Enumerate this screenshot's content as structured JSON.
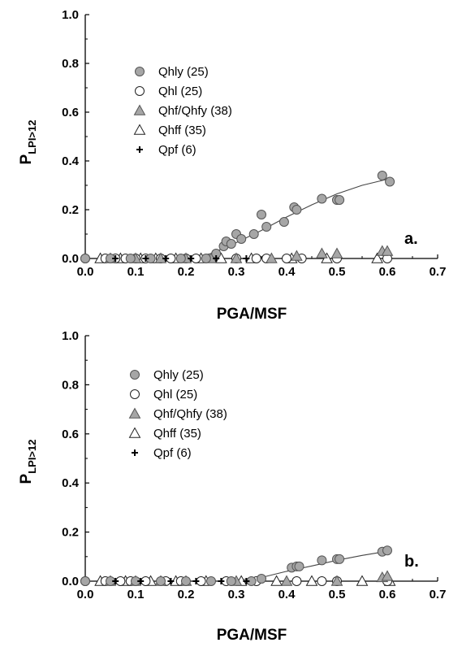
{
  "chart_data": [
    {
      "type": "scatter",
      "panel_label": "a.",
      "xlabel": "PGA/MSF",
      "ylabel": "P",
      "ylabel_sub": "LPI>12",
      "xlim": [
        0,
        0.7
      ],
      "ylim": [
        0,
        1
      ],
      "xticks": [
        "0.0",
        "0.1",
        "0.2",
        "0.3",
        "0.4",
        "0.5",
        "0.6",
        "0.7"
      ],
      "yticks": [
        "0.0",
        "0.2",
        "0.4",
        "0.6",
        "0.8",
        "1.0"
      ],
      "grid": false,
      "legend_position": "top-left",
      "series": [
        {
          "name": "Qhly (25)",
          "marker": "circle-filled",
          "color": "#a6a6a6",
          "points": [
            [
              0.0,
              0.0
            ],
            [
              0.05,
              0.0
            ],
            [
              0.09,
              0.0
            ],
            [
              0.13,
              0.0
            ],
            [
              0.19,
              0.0
            ],
            [
              0.24,
              0.0
            ],
            [
              0.26,
              0.02
            ],
            [
              0.275,
              0.05
            ],
            [
              0.28,
              0.07
            ],
            [
              0.29,
              0.06
            ],
            [
              0.3,
              0.1
            ],
            [
              0.31,
              0.08
            ],
            [
              0.335,
              0.1
            ],
            [
              0.35,
              0.18
            ],
            [
              0.36,
              0.13
            ],
            [
              0.395,
              0.15
            ],
            [
              0.415,
              0.21
            ],
            [
              0.42,
              0.2
            ],
            [
              0.47,
              0.245
            ],
            [
              0.5,
              0.24
            ],
            [
              0.505,
              0.24
            ],
            [
              0.59,
              0.34
            ],
            [
              0.605,
              0.315
            ]
          ]
        },
        {
          "name": "Qhl (25)",
          "marker": "circle-open",
          "color": "#ffffff",
          "points": [
            [
              0.0,
              0.0
            ],
            [
              0.04,
              0.0
            ],
            [
              0.06,
              0.0
            ],
            [
              0.08,
              0.0
            ],
            [
              0.1,
              0.0
            ],
            [
              0.12,
              0.0
            ],
            [
              0.15,
              0.0
            ],
            [
              0.17,
              0.0
            ],
            [
              0.2,
              0.0
            ],
            [
              0.22,
              0.0
            ],
            [
              0.3,
              0.0
            ],
            [
              0.34,
              0.0
            ],
            [
              0.36,
              0.0
            ],
            [
              0.4,
              0.0
            ],
            [
              0.43,
              0.0
            ],
            [
              0.5,
              0.0
            ],
            [
              0.6,
              0.0
            ]
          ]
        },
        {
          "name": "Qhf/Qhfy (38)",
          "marker": "triangle-filled",
          "color": "#a6a6a6",
          "points": [
            [
              0.05,
              0.0
            ],
            [
              0.1,
              0.0
            ],
            [
              0.15,
              0.0
            ],
            [
              0.2,
              0.0
            ],
            [
              0.25,
              0.0
            ],
            [
              0.3,
              0.0
            ],
            [
              0.37,
              0.0
            ],
            [
              0.42,
              0.01
            ],
            [
              0.47,
              0.02
            ],
            [
              0.5,
              0.02
            ],
            [
              0.59,
              0.03
            ],
            [
              0.6,
              0.03
            ]
          ]
        },
        {
          "name": "Qhff (35)",
          "marker": "triangle-open",
          "color": "#ffffff",
          "points": [
            [
              0.03,
              0.0
            ],
            [
              0.07,
              0.0
            ],
            [
              0.11,
              0.0
            ],
            [
              0.14,
              0.0
            ],
            [
              0.18,
              0.0
            ],
            [
              0.23,
              0.0
            ],
            [
              0.27,
              0.0
            ],
            [
              0.33,
              0.0
            ],
            [
              0.41,
              0.0
            ],
            [
              0.48,
              0.0
            ],
            [
              0.58,
              0.0
            ]
          ]
        },
        {
          "name": "Qpf (6)",
          "marker": "plus",
          "color": "#000000",
          "points": [
            [
              0.06,
              0.0
            ],
            [
              0.12,
              0.0
            ],
            [
              0.16,
              0.0
            ],
            [
              0.21,
              0.0
            ],
            [
              0.26,
              0.0
            ],
            [
              0.32,
              0.0
            ]
          ]
        }
      ],
      "fit_curve": {
        "points": [
          [
            0.2,
            0.0
          ],
          [
            0.25,
            0.02
          ],
          [
            0.3,
            0.065
          ],
          [
            0.35,
            0.115
          ],
          [
            0.4,
            0.17
          ],
          [
            0.45,
            0.22
          ],
          [
            0.5,
            0.265
          ],
          [
            0.55,
            0.3
          ],
          [
            0.6,
            0.325
          ]
        ]
      }
    },
    {
      "type": "scatter",
      "panel_label": "b.",
      "xlabel": "PGA/MSF",
      "ylabel": "P",
      "ylabel_sub": "LPI>12",
      "xlim": [
        0,
        0.7
      ],
      "ylim": [
        0,
        1
      ],
      "xticks": [
        "0.0",
        "0.1",
        "0.2",
        "0.3",
        "0.4",
        "0.5",
        "0.6",
        "0.7"
      ],
      "yticks": [
        "0.0",
        "0.2",
        "0.4",
        "0.6",
        "0.8",
        "1.0"
      ],
      "grid": false,
      "legend_position": "top-left",
      "series": [
        {
          "name": "Qhly (25)",
          "marker": "circle-filled",
          "color": "#a6a6a6",
          "points": [
            [
              0.0,
              0.0
            ],
            [
              0.05,
              0.0
            ],
            [
              0.1,
              0.0
            ],
            [
              0.15,
              0.0
            ],
            [
              0.2,
              0.0
            ],
            [
              0.25,
              0.0
            ],
            [
              0.29,
              0.0
            ],
            [
              0.33,
              0.0
            ],
            [
              0.35,
              0.01
            ],
            [
              0.41,
              0.055
            ],
            [
              0.42,
              0.06
            ],
            [
              0.425,
              0.06
            ],
            [
              0.47,
              0.085
            ],
            [
              0.5,
              0.09
            ],
            [
              0.505,
              0.09
            ],
            [
              0.59,
              0.12
            ],
            [
              0.6,
              0.125
            ]
          ]
        },
        {
          "name": "Qhl (25)",
          "marker": "circle-open",
          "color": "#ffffff",
          "points": [
            [
              0.0,
              0.0
            ],
            [
              0.04,
              0.0
            ],
            [
              0.07,
              0.0
            ],
            [
              0.09,
              0.0
            ],
            [
              0.12,
              0.0
            ],
            [
              0.16,
              0.0
            ],
            [
              0.19,
              0.0
            ],
            [
              0.23,
              0.0
            ],
            [
              0.28,
              0.0
            ],
            [
              0.34,
              0.0
            ],
            [
              0.42,
              0.0
            ],
            [
              0.47,
              0.0
            ],
            [
              0.5,
              0.0
            ],
            [
              0.6,
              0.0
            ]
          ]
        },
        {
          "name": "Qhf/Qhfy (38)",
          "marker": "triangle-filled",
          "color": "#a6a6a6",
          "points": [
            [
              0.05,
              0.0
            ],
            [
              0.1,
              0.0
            ],
            [
              0.15,
              0.0
            ],
            [
              0.2,
              0.0
            ],
            [
              0.3,
              0.0
            ],
            [
              0.4,
              0.0
            ],
            [
              0.5,
              0.0
            ],
            [
              0.59,
              0.015
            ],
            [
              0.6,
              0.02
            ]
          ]
        },
        {
          "name": "Qhff (35)",
          "marker": "triangle-open",
          "color": "#ffffff",
          "points": [
            [
              0.03,
              0.0
            ],
            [
              0.08,
              0.0
            ],
            [
              0.13,
              0.0
            ],
            [
              0.18,
              0.0
            ],
            [
              0.24,
              0.0
            ],
            [
              0.31,
              0.0
            ],
            [
              0.38,
              0.0
            ],
            [
              0.45,
              0.0
            ],
            [
              0.55,
              0.0
            ],
            [
              0.605,
              0.0
            ]
          ]
        },
        {
          "name": "Qpf (6)",
          "marker": "plus",
          "color": "#000000",
          "points": [
            [
              0.06,
              0.0
            ],
            [
              0.11,
              0.0
            ],
            [
              0.17,
              0.0
            ],
            [
              0.22,
              0.0
            ],
            [
              0.27,
              0.0
            ],
            [
              0.32,
              0.0
            ]
          ]
        }
      ],
      "fit_curve": {
        "points": [
          [
            0.25,
            0.0
          ],
          [
            0.3,
            0.003
          ],
          [
            0.35,
            0.015
          ],
          [
            0.4,
            0.04
          ],
          [
            0.45,
            0.062
          ],
          [
            0.5,
            0.085
          ],
          [
            0.55,
            0.105
          ],
          [
            0.6,
            0.122
          ]
        ]
      }
    }
  ]
}
